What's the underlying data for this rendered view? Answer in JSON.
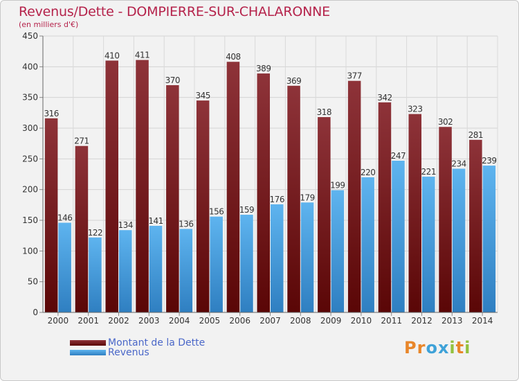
{
  "title": "Revenus/Dette - DOMPIERRE-SUR-CHALARONNE",
  "subtitle": "(en milliers d'€)",
  "logo": {
    "letters": [
      "P",
      "r",
      "o",
      "x",
      "i",
      "t",
      "i"
    ],
    "colors": [
      "#e8862a",
      "#e8862a",
      "#3fa2d8",
      "#3fa2d8",
      "#93c13e",
      "#e8862a",
      "#93c13e"
    ]
  },
  "chart_data": {
    "type": "bar",
    "categories": [
      "2000",
      "2001",
      "2002",
      "2003",
      "2004",
      "2005",
      "2006",
      "2007",
      "2008",
      "2009",
      "2010",
      "2011",
      "2012",
      "2013",
      "2014"
    ],
    "series": [
      {
        "name": "Montant de la Dette",
        "values": [
          316,
          271,
          410,
          411,
          370,
          345,
          408,
          389,
          369,
          318,
          377,
          342,
          323,
          302,
          281
        ],
        "color": "#7a1e1e"
      },
      {
        "name": "Revenus",
        "values": [
          146,
          122,
          134,
          141,
          136,
          156,
          159,
          176,
          179,
          199,
          220,
          247,
          221,
          234,
          239
        ],
        "color": "#4aa6e4"
      }
    ],
    "ylim": [
      0,
      450
    ],
    "yticks": [
      0,
      50,
      100,
      150,
      200,
      250,
      300,
      350,
      400,
      450
    ],
    "grid": true,
    "legend": "bottom-left"
  }
}
